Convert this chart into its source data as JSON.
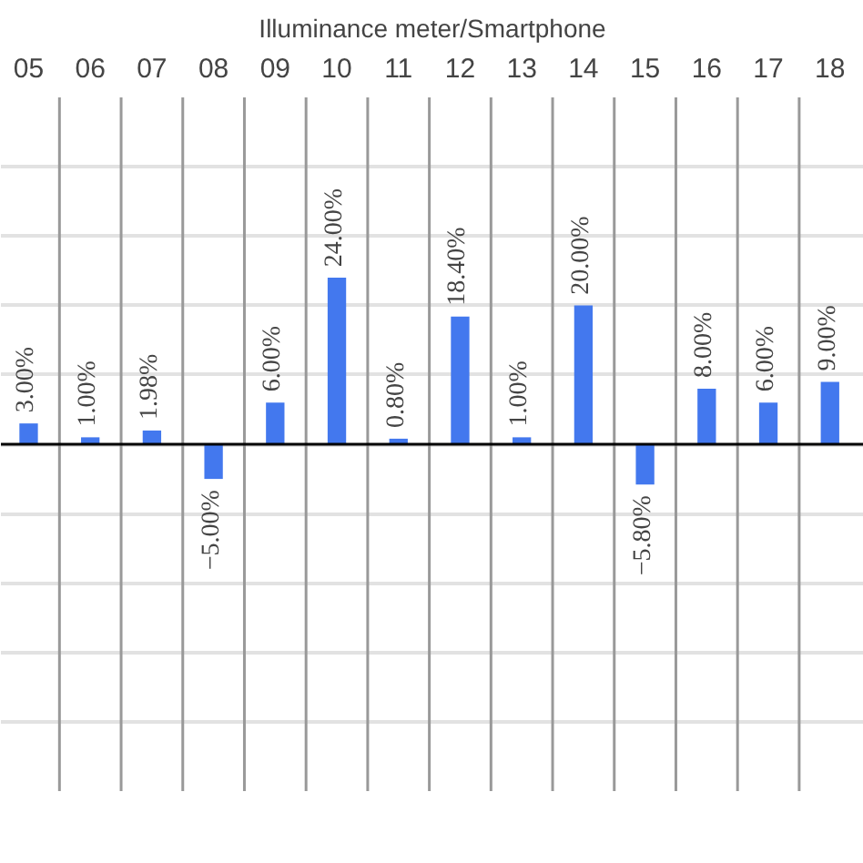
{
  "chart_data": {
    "type": "bar",
    "title": "Illuminance meter/Smartphone",
    "categories": [
      "05",
      "06",
      "07",
      "08",
      "09",
      "10",
      "11",
      "12",
      "13",
      "14",
      "15",
      "16",
      "17",
      "18"
    ],
    "values": [
      3.0,
      1.0,
      1.98,
      -5.0,
      6.0,
      24.0,
      0.8,
      18.4,
      1.0,
      20.0,
      -5.8,
      8.0,
      6.0,
      9.0
    ],
    "value_labels": [
      "3.00%",
      "1.00%",
      "1.98%",
      "−5.00%",
      "6.00%",
      "24.00%",
      "0.80%",
      "18.40%",
      "1.00%",
      "20.00%",
      "−5.80%",
      "8.00%",
      "6.00%",
      "9.00%"
    ],
    "color": "#4378ee",
    "ylim": [
      -50,
      50
    ],
    "tick_labels": "x",
    "grid": true
  }
}
